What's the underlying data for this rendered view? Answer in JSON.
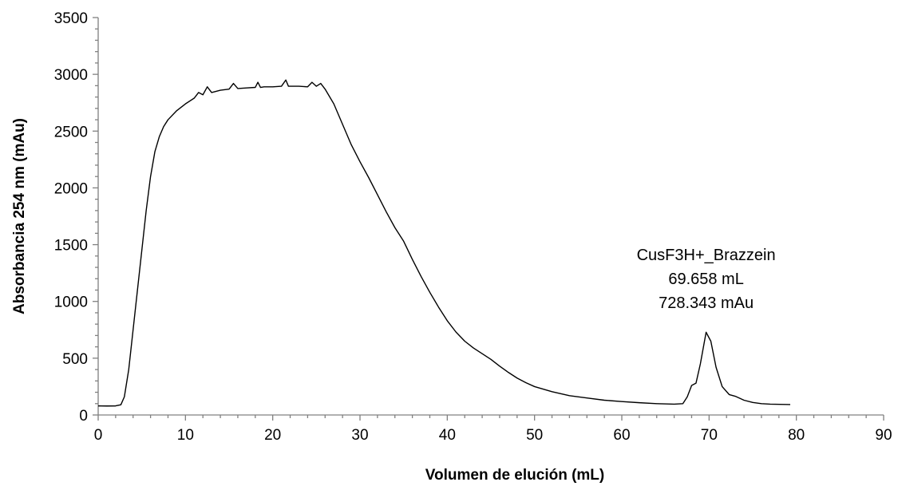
{
  "chart_data": {
    "type": "line",
    "xlabel": "Volumen de elución (mL)",
    "ylabel": "Absorbancia 254 nm (mAu)",
    "xlim": [
      0,
      90
    ],
    "ylim": [
      0,
      3500
    ],
    "x_ticks": [
      0,
      10,
      20,
      30,
      40,
      50,
      60,
      70,
      80,
      90
    ],
    "y_ticks": [
      0,
      500,
      1000,
      1500,
      2000,
      2500,
      3000,
      3500
    ],
    "grid": false,
    "legend": "none",
    "series": [
      {
        "color": "#000000",
        "points": [
          [
            0,
            80
          ],
          [
            1,
            79
          ],
          [
            2,
            80
          ],
          [
            2.6,
            90
          ],
          [
            3.0,
            160
          ],
          [
            3.5,
            400
          ],
          [
            4.0,
            750
          ],
          [
            4.5,
            1100
          ],
          [
            5.0,
            1450
          ],
          [
            5.5,
            1800
          ],
          [
            6.0,
            2100
          ],
          [
            6.5,
            2320
          ],
          [
            7.0,
            2450
          ],
          [
            7.5,
            2540
          ],
          [
            8.0,
            2600
          ],
          [
            9.0,
            2680
          ],
          [
            10.0,
            2740
          ],
          [
            11.0,
            2790
          ],
          [
            11.5,
            2840
          ],
          [
            12.0,
            2820
          ],
          [
            12.5,
            2890
          ],
          [
            13.0,
            2840
          ],
          [
            14.0,
            2860
          ],
          [
            15.0,
            2870
          ],
          [
            15.5,
            2920
          ],
          [
            16.0,
            2875
          ],
          [
            17.0,
            2880
          ],
          [
            18.0,
            2885
          ],
          [
            18.3,
            2930
          ],
          [
            18.6,
            2885
          ],
          [
            19.0,
            2890
          ],
          [
            20.0,
            2890
          ],
          [
            21.0,
            2895
          ],
          [
            21.5,
            2950
          ],
          [
            21.8,
            2895
          ],
          [
            23.0,
            2895
          ],
          [
            24.0,
            2890
          ],
          [
            24.5,
            2930
          ],
          [
            25.0,
            2895
          ],
          [
            25.5,
            2920
          ],
          [
            26.0,
            2870
          ],
          [
            27.0,
            2740
          ],
          [
            28.0,
            2560
          ],
          [
            29.0,
            2380
          ],
          [
            30.0,
            2230
          ],
          [
            31.0,
            2090
          ],
          [
            32.0,
            1940
          ],
          [
            33.0,
            1790
          ],
          [
            34.0,
            1650
          ],
          [
            35.0,
            1530
          ],
          [
            36.0,
            1370
          ],
          [
            37.0,
            1220
          ],
          [
            38.0,
            1080
          ],
          [
            39.0,
            950
          ],
          [
            40.0,
            830
          ],
          [
            41.0,
            730
          ],
          [
            42.0,
            650
          ],
          [
            43.0,
            590
          ],
          [
            44.0,
            540
          ],
          [
            45.0,
            490
          ],
          [
            46.0,
            430
          ],
          [
            47.0,
            375
          ],
          [
            48.0,
            325
          ],
          [
            49.0,
            285
          ],
          [
            50.0,
            250
          ],
          [
            52.0,
            205
          ],
          [
            54.0,
            170
          ],
          [
            56.0,
            150
          ],
          [
            58.0,
            130
          ],
          [
            60.0,
            118
          ],
          [
            62.0,
            108
          ],
          [
            64.0,
            100
          ],
          [
            66.0,
            95
          ],
          [
            67.0,
            100
          ],
          [
            67.5,
            160
          ],
          [
            68.0,
            260
          ],
          [
            68.5,
            280
          ],
          [
            69.0,
            450
          ],
          [
            69.658,
            728.343
          ],
          [
            70.2,
            650
          ],
          [
            70.8,
            420
          ],
          [
            71.5,
            250
          ],
          [
            72.3,
            180
          ],
          [
            73.0,
            165
          ],
          [
            74.0,
            130
          ],
          [
            75.0,
            110
          ],
          [
            76.0,
            100
          ],
          [
            77.0,
            95
          ],
          [
            79.3,
            92
          ]
        ]
      }
    ],
    "annotation": {
      "label": "CusF3H+_Brazzein",
      "x_label": "69.658 mL",
      "y_label": "728.343 mAu",
      "x": 69.658,
      "y": 728.343
    }
  }
}
